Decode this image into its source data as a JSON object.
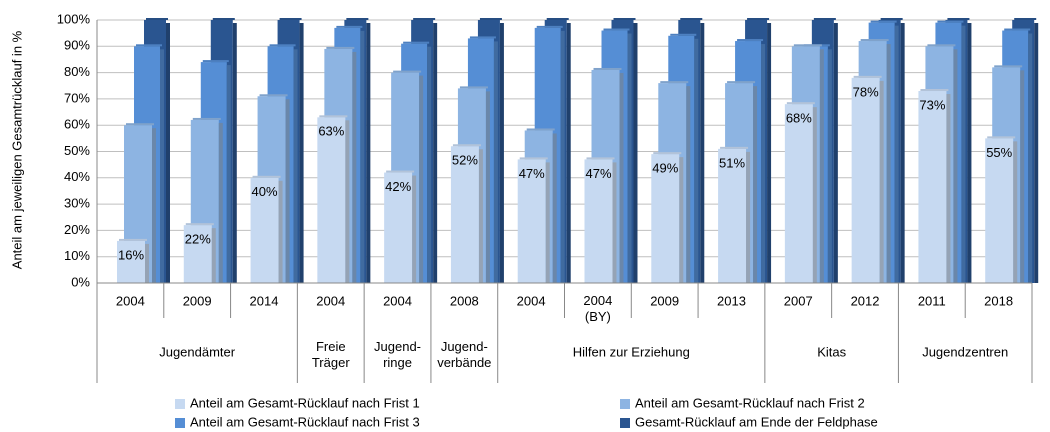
{
  "chart_data": {
    "type": "bar3d",
    "y_label": "Anteil am jeweiligen Gesamtrücklauf in %",
    "groups": [
      {
        "name": "Jugendämter",
        "categories": [
          "2004",
          "2009",
          "2014"
        ]
      },
      {
        "name": "Freie\nTräger",
        "categories": [
          "2004"
        ]
      },
      {
        "name": "Jugend-\nringe",
        "categories": [
          "2004"
        ]
      },
      {
        "name": "Jugend-\nverbände",
        "categories": [
          "2008"
        ]
      },
      {
        "name": "Hilfen zur Erziehung",
        "categories": [
          "2004",
          "2004\n(BY)",
          "2009",
          "2013"
        ]
      },
      {
        "name": "Kitas",
        "categories": [
          "2007",
          "2012"
        ]
      },
      {
        "name": "Jugendzentren",
        "categories": [
          "2011",
          "2018"
        ]
      }
    ],
    "series": [
      {
        "name": "Anteil am Gesamt-Rücklauf nach Frist 1",
        "color": "#c6d9f1",
        "values": [
          16,
          22,
          40,
          63,
          42,
          52,
          47,
          47,
          49,
          51,
          68,
          78,
          73,
          55
        ],
        "value_labels": [
          "16%",
          "22%",
          "40%",
          "63%",
          "42%",
          "52%",
          "47%",
          "47%",
          "49%",
          "51%",
          "68%",
          "78%",
          "73%",
          "55%"
        ]
      },
      {
        "name": "Anteil am Gesamt-Rücklauf nach Frist 2",
        "color": "#8db4e2",
        "values": [
          60,
          62,
          71,
          89,
          80,
          74,
          58,
          81,
          76,
          76,
          90,
          92,
          90,
          82
        ]
      },
      {
        "name": "Anteil am Gesamt-Rücklauf nach Frist 3",
        "color": "#558ed5",
        "values": [
          90,
          84,
          90,
          97,
          91,
          93,
          97,
          96,
          94,
          92,
          90,
          99,
          99,
          96
        ]
      },
      {
        "name": "Gesamt-Rücklauf am Ende der Feldphase",
        "color": "#2a5590",
        "values": [
          100,
          100,
          100,
          100,
          100,
          100,
          100,
          100,
          100,
          100,
          100,
          100,
          100,
          100
        ]
      }
    ],
    "ylim": [
      0,
      100
    ],
    "yticks": [
      {
        "value": 0,
        "label": "0%"
      },
      {
        "value": 10,
        "label": "10%"
      },
      {
        "value": 20,
        "label": "20%"
      },
      {
        "value": 30,
        "label": "30%"
      },
      {
        "value": 40,
        "label": "40%"
      },
      {
        "value": 50,
        "label": "50%"
      },
      {
        "value": 60,
        "label": "60%"
      },
      {
        "value": 70,
        "label": "70%"
      },
      {
        "value": 80,
        "label": "80%"
      },
      {
        "value": 90,
        "label": "90%"
      },
      {
        "value": 100,
        "label": "100%"
      }
    ],
    "grid": true
  }
}
